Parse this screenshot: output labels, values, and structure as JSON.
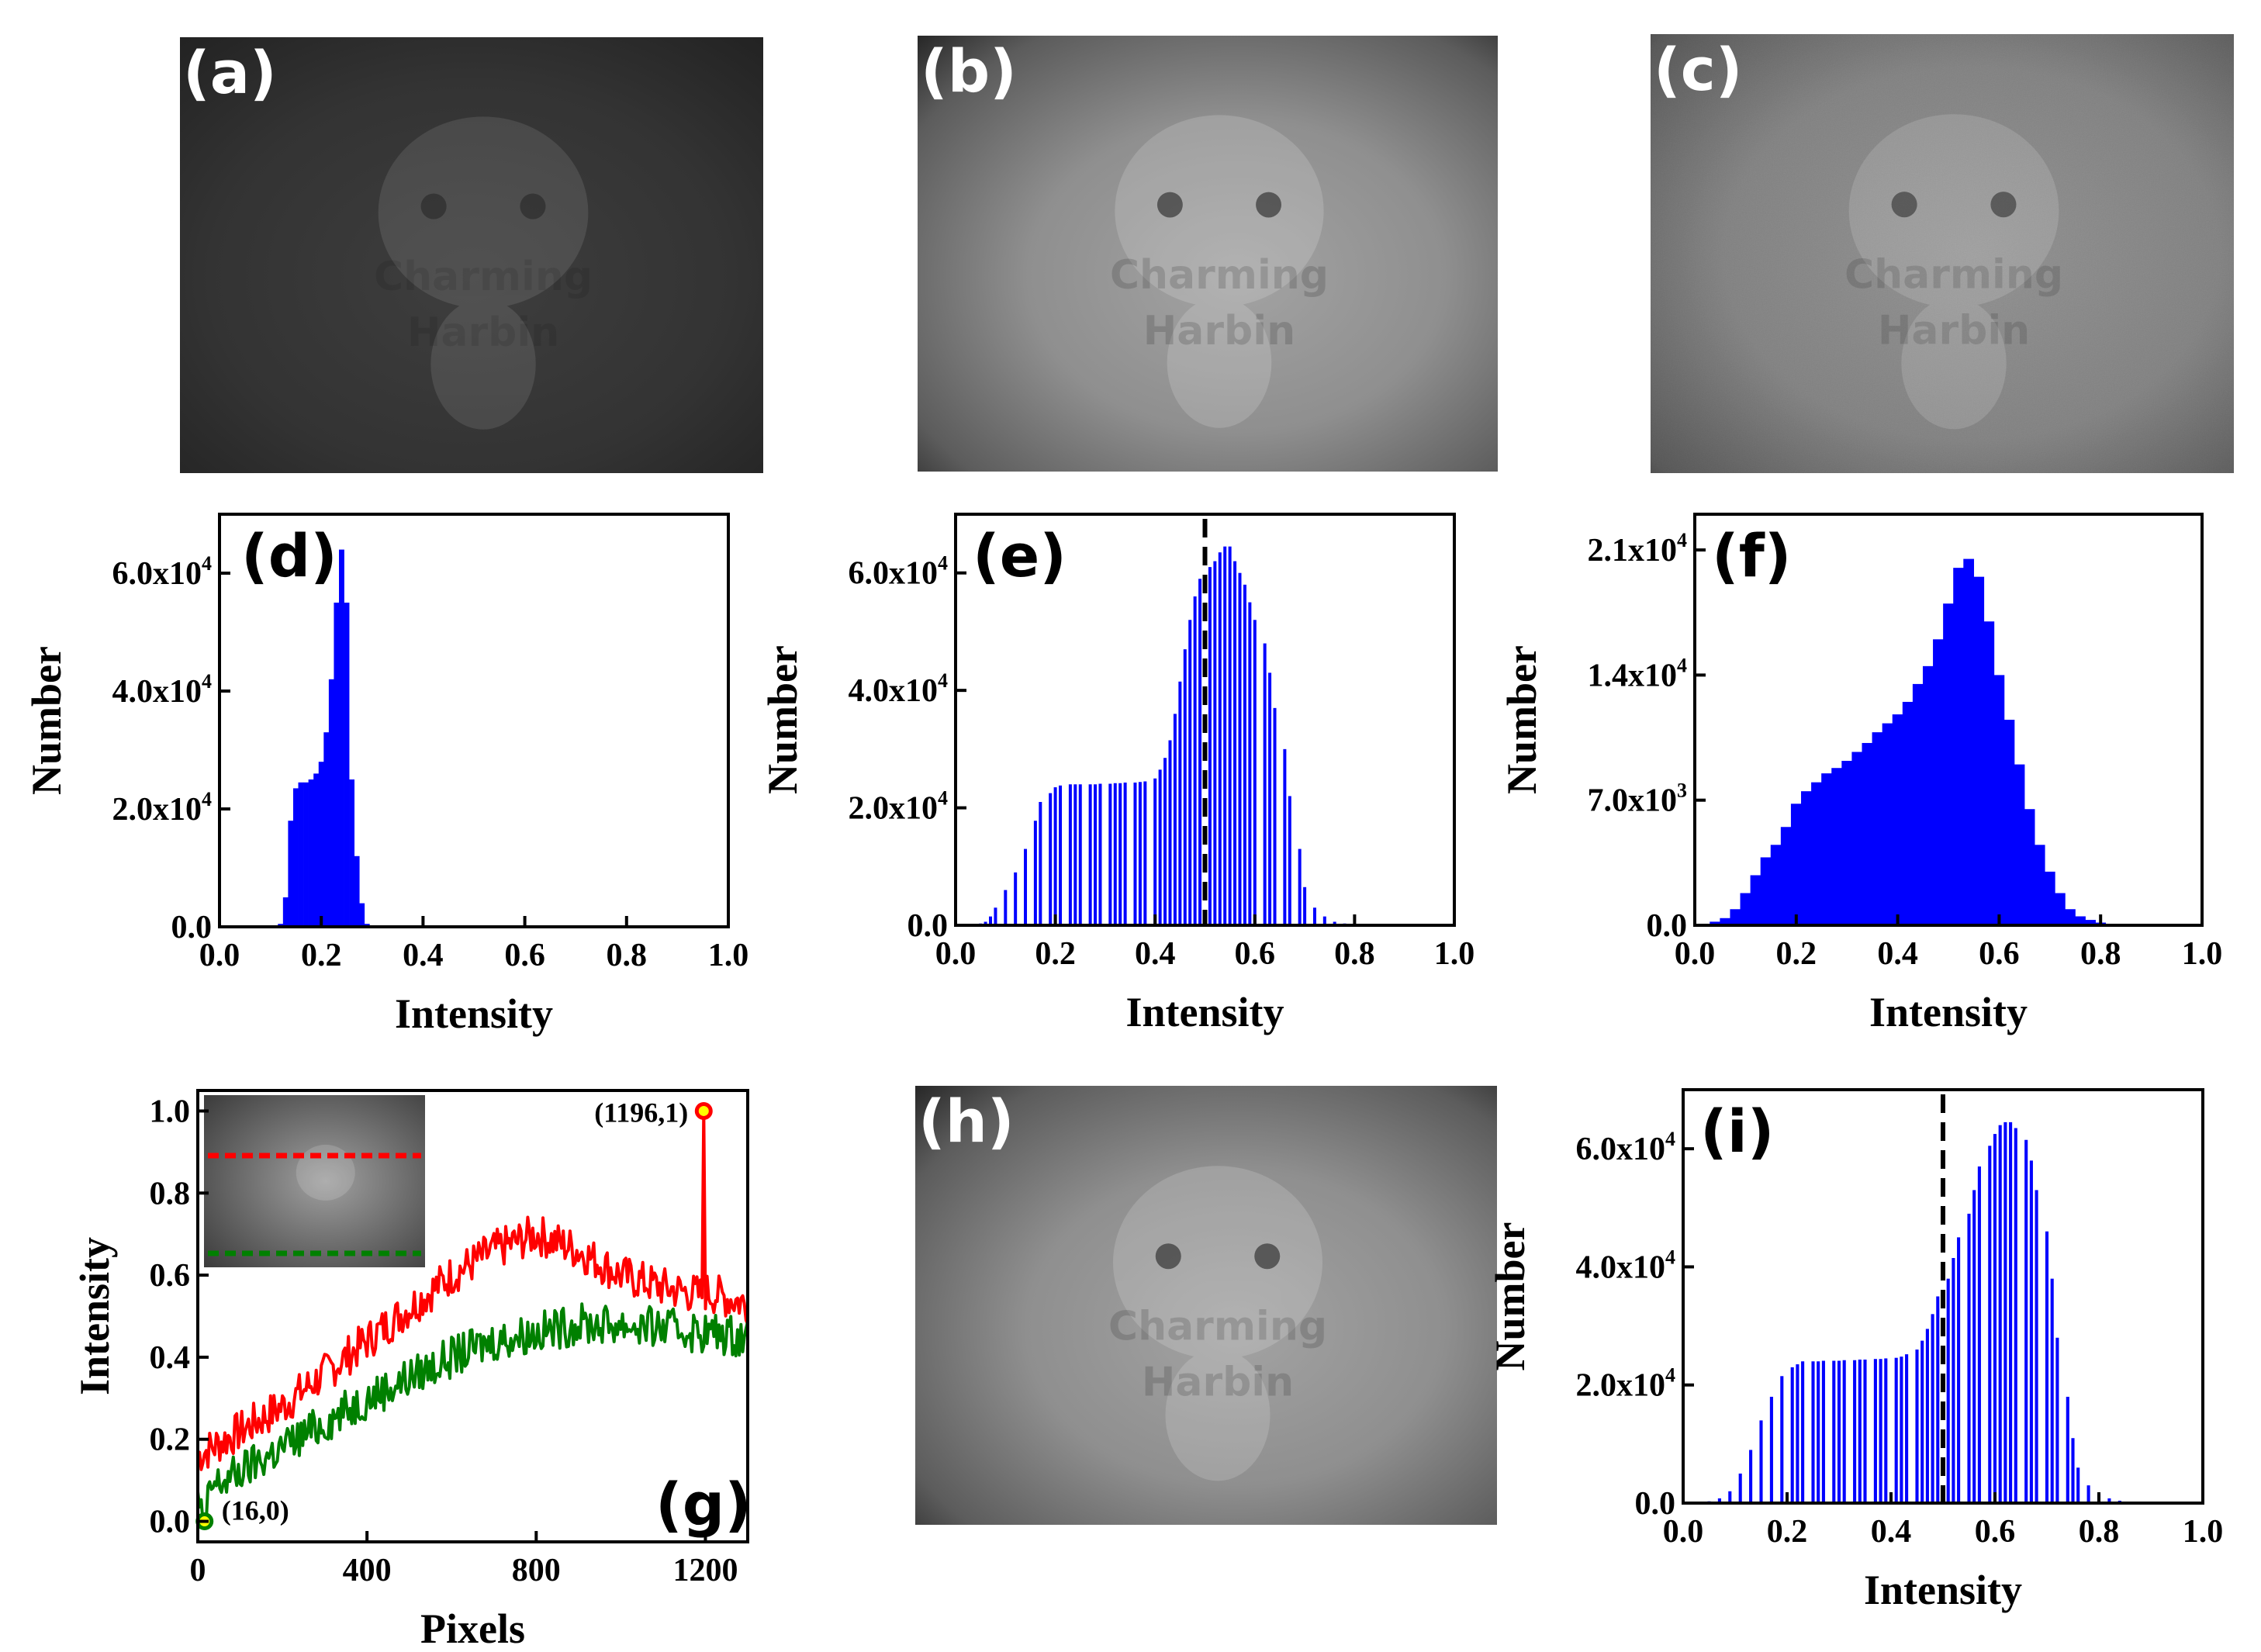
{
  "figure": {
    "images": [
      {
        "label": "(a)",
        "name": "a",
        "tone": "dark",
        "watermark": [
          "Charming",
          "Harbin"
        ]
      },
      {
        "label": "(b)",
        "name": "b",
        "tone": "normal",
        "watermark": [
          "Charming",
          "Harbin"
        ]
      },
      {
        "label": "(c)",
        "name": "c",
        "tone": "noisy",
        "watermark": [
          "Charming",
          "Harbin"
        ]
      },
      {
        "label": "(h)",
        "name": "h",
        "tone": "normal",
        "watermark": [
          "Charming",
          "Harbin"
        ]
      }
    ]
  },
  "colors": {
    "bars": "#0000ff",
    "red_line": "#ff0000",
    "green_line": "#008000",
    "dashed": "#000000"
  },
  "chart_data": [
    {
      "id": "d",
      "label": "(d)",
      "type": "bar",
      "style": "filled",
      "xlabel": "Intensity",
      "ylabel": "Number",
      "xlim": [
        0,
        1
      ],
      "ylim": [
        0,
        70000
      ],
      "xticks": [
        0.0,
        0.2,
        0.4,
        0.6,
        0.8,
        1.0
      ],
      "xticklabels": [
        "0.0",
        "0.2",
        "0.4",
        "0.6",
        "0.8",
        "1.0"
      ],
      "yticks": [
        0,
        20000,
        40000,
        60000
      ],
      "yticklabels": [
        {
          "text": "0.0"
        },
        {
          "text": "2.0x10",
          "exp": "4"
        },
        {
          "text": "4.0x10",
          "exp": "4"
        },
        {
          "text": "6.0x10",
          "exp": "4"
        }
      ],
      "x": [
        0.12,
        0.13,
        0.14,
        0.15,
        0.16,
        0.17,
        0.18,
        0.19,
        0.2,
        0.21,
        0.22,
        0.23,
        0.24,
        0.25,
        0.26,
        0.27,
        0.28,
        0.29
      ],
      "values": [
        500,
        5000,
        18000,
        23500,
        24500,
        24500,
        25000,
        26000,
        28000,
        33000,
        42000,
        55000,
        64000,
        55000,
        25000,
        12000,
        4000,
        500
      ]
    },
    {
      "id": "e",
      "label": "(e)",
      "type": "bar",
      "style": "comb",
      "xlabel": "Intensity",
      "ylabel": "Number",
      "xlim": [
        0,
        1
      ],
      "ylim": [
        0,
        70000
      ],
      "xticks": [
        0.0,
        0.2,
        0.4,
        0.6,
        0.8,
        1.0
      ],
      "xticklabels": [
        "0.0",
        "0.2",
        "0.4",
        "0.6",
        "0.8",
        "1.0"
      ],
      "yticks": [
        0,
        20000,
        40000,
        60000
      ],
      "yticklabels": [
        {
          "text": "0.0"
        },
        {
          "text": "2.0x10",
          "exp": "4"
        },
        {
          "text": "4.0x10",
          "exp": "4"
        },
        {
          "text": "6.0x10",
          "exp": "4"
        }
      ],
      "vline": 0.5,
      "x": [
        0.05,
        0.06,
        0.07,
        0.08,
        0.1,
        0.12,
        0.14,
        0.16,
        0.17,
        0.19,
        0.2,
        0.21,
        0.23,
        0.24,
        0.25,
        0.27,
        0.28,
        0.29,
        0.31,
        0.32,
        0.33,
        0.34,
        0.36,
        0.37,
        0.38,
        0.4,
        0.41,
        0.42,
        0.43,
        0.44,
        0.45,
        0.46,
        0.47,
        0.48,
        0.49,
        0.51,
        0.52,
        0.53,
        0.54,
        0.55,
        0.56,
        0.57,
        0.58,
        0.59,
        0.6,
        0.62,
        0.63,
        0.64,
        0.66,
        0.67,
        0.69,
        0.7,
        0.72,
        0.74,
        0.76,
        0.78
      ],
      "values": [
        300,
        600,
        1500,
        3000,
        6000,
        9000,
        13000,
        17800,
        21000,
        22500,
        23500,
        23800,
        24000,
        24000,
        24000,
        24000,
        24000,
        24100,
        24100,
        24200,
        24200,
        24300,
        24300,
        24400,
        24500,
        25000,
        26500,
        28500,
        31500,
        36000,
        41500,
        47000,
        52000,
        56000,
        59000,
        61000,
        62000,
        63500,
        64500,
        64500,
        62000,
        60000,
        58000,
        55000,
        52000,
        48000,
        43000,
        37000,
        30000,
        22000,
        13000,
        6500,
        3000,
        1500,
        600,
        300
      ]
    },
    {
      "id": "f",
      "label": "(f)",
      "type": "bar",
      "style": "filled",
      "xlabel": "Intensity",
      "ylabel": "Number",
      "xlim": [
        0,
        1
      ],
      "ylim": [
        0,
        23000
      ],
      "xticks": [
        0.0,
        0.2,
        0.4,
        0.6,
        0.8,
        1.0
      ],
      "xticklabels": [
        "0.0",
        "0.2",
        "0.4",
        "0.6",
        "0.8",
        "1.0"
      ],
      "yticks": [
        0,
        7000,
        14000,
        21000
      ],
      "yticklabels": [
        {
          "text": "0.0"
        },
        {
          "text": "7.0x10",
          "exp": "3"
        },
        {
          "text": "1.4x10",
          "exp": "4"
        },
        {
          "text": "2.1x10",
          "exp": "4"
        }
      ],
      "x": [
        0.04,
        0.06,
        0.08,
        0.1,
        0.12,
        0.14,
        0.16,
        0.18,
        0.2,
        0.22,
        0.24,
        0.26,
        0.28,
        0.3,
        0.32,
        0.34,
        0.36,
        0.38,
        0.4,
        0.42,
        0.44,
        0.46,
        0.48,
        0.5,
        0.52,
        0.54,
        0.56,
        0.58,
        0.6,
        0.62,
        0.64,
        0.66,
        0.68,
        0.7,
        0.72,
        0.74,
        0.76,
        0.78,
        0.8
      ],
      "values": [
        200,
        400,
        900,
        1800,
        2800,
        3800,
        4500,
        5500,
        6800,
        7500,
        8000,
        8500,
        8800,
        9200,
        9700,
        10200,
        10800,
        11300,
        11800,
        12500,
        13500,
        14500,
        16000,
        18000,
        20000,
        20500,
        19500,
        17000,
        14000,
        11500,
        9000,
        6500,
        4500,
        3000,
        1800,
        900,
        500,
        300,
        150
      ]
    },
    {
      "id": "g",
      "label": "(g)",
      "type": "line",
      "xlabel": "Pixels",
      "ylabel": "Intensity",
      "xlim": [
        0,
        1300
      ],
      "ylim": [
        -0.05,
        1.05
      ],
      "xticks": [
        0,
        400,
        800,
        1200
      ],
      "xticklabels": [
        "0",
        "400",
        "800",
        "1200"
      ],
      "yticks": [
        0.0,
        0.2,
        0.4,
        0.6,
        0.8,
        1.0
      ],
      "yticklabels": [
        {
          "text": "0.0"
        },
        {
          "text": "0.2"
        },
        {
          "text": "0.4"
        },
        {
          "text": "0.6"
        },
        {
          "text": "0.8"
        },
        {
          "text": "1.0"
        }
      ],
      "series": [
        {
          "name": "red",
          "color": "#ff0000",
          "x": [
            0,
            100,
            200,
            300,
            400,
            500,
            600,
            700,
            800,
            900,
            1000,
            1100,
            1196,
            1197,
            1198,
            1300
          ],
          "values": [
            0.16,
            0.22,
            0.28,
            0.36,
            0.44,
            0.52,
            0.6,
            0.66,
            0.7,
            0.66,
            0.6,
            0.57,
            0.55,
            1.0,
            0.56,
            0.53
          ]
        },
        {
          "name": "green",
          "color": "#008000",
          "x": [
            0,
            16,
            30,
            100,
            200,
            300,
            400,
            500,
            600,
            700,
            800,
            900,
            1000,
            1100,
            1200,
            1300
          ],
          "values": [
            0.05,
            0.0,
            0.08,
            0.12,
            0.18,
            0.24,
            0.3,
            0.35,
            0.4,
            0.44,
            0.46,
            0.48,
            0.48,
            0.47,
            0.46,
            0.45
          ]
        }
      ],
      "annotations": [
        {
          "text": "(1196,1)",
          "x": 1196,
          "y": 1.0,
          "color": "#ff0000"
        },
        {
          "text": "(16,0)",
          "x": 16,
          "y": 0.0,
          "color": "#008000"
        }
      ],
      "inset": {
        "lines": [
          "red dashed row",
          "green dashed row"
        ]
      }
    },
    {
      "id": "i",
      "label": "(i)",
      "type": "bar",
      "style": "comb",
      "xlabel": "Intensity",
      "ylabel": "Number",
      "xlim": [
        0,
        1
      ],
      "ylim": [
        0,
        70000
      ],
      "xticks": [
        0.0,
        0.2,
        0.4,
        0.6,
        0.8,
        1.0
      ],
      "xticklabels": [
        "0.0",
        "0.2",
        "0.4",
        "0.6",
        "0.8",
        "1.0"
      ],
      "yticks": [
        0,
        20000,
        40000,
        60000
      ],
      "yticklabels": [
        {
          "text": "0.0"
        },
        {
          "text": "2.0x10",
          "exp": "4"
        },
        {
          "text": "4.0x10",
          "exp": "4"
        },
        {
          "text": "6.0x10",
          "exp": "4"
        }
      ],
      "vline": 0.5,
      "x": [
        0.05,
        0.07,
        0.09,
        0.11,
        0.13,
        0.15,
        0.17,
        0.19,
        0.21,
        0.22,
        0.23,
        0.25,
        0.26,
        0.27,
        0.29,
        0.3,
        0.31,
        0.33,
        0.34,
        0.35,
        0.37,
        0.38,
        0.39,
        0.41,
        0.42,
        0.43,
        0.45,
        0.46,
        0.47,
        0.48,
        0.49,
        0.51,
        0.52,
        0.53,
        0.55,
        0.56,
        0.57,
        0.59,
        0.6,
        0.61,
        0.62,
        0.63,
        0.64,
        0.66,
        0.67,
        0.68,
        0.7,
        0.71,
        0.72,
        0.74,
        0.75,
        0.76,
        0.78,
        0.8,
        0.82,
        0.84,
        0.86,
        0.88
      ],
      "values": [
        300,
        800,
        2000,
        5000,
        9000,
        14000,
        18000,
        21500,
        23000,
        23500,
        24000,
        24000,
        24000,
        24100,
        24100,
        24100,
        24200,
        24200,
        24300,
        24300,
        24400,
        24400,
        24500,
        24600,
        24800,
        25200,
        26000,
        27500,
        29500,
        32000,
        35000,
        38000,
        41500,
        45000,
        49000,
        53000,
        57000,
        60500,
        62500,
        64000,
        64500,
        64500,
        63500,
        61500,
        58000,
        53000,
        46000,
        38000,
        28000,
        18000,
        11000,
        6000,
        3000,
        1500,
        800,
        400,
        200,
        100
      ]
    }
  ]
}
